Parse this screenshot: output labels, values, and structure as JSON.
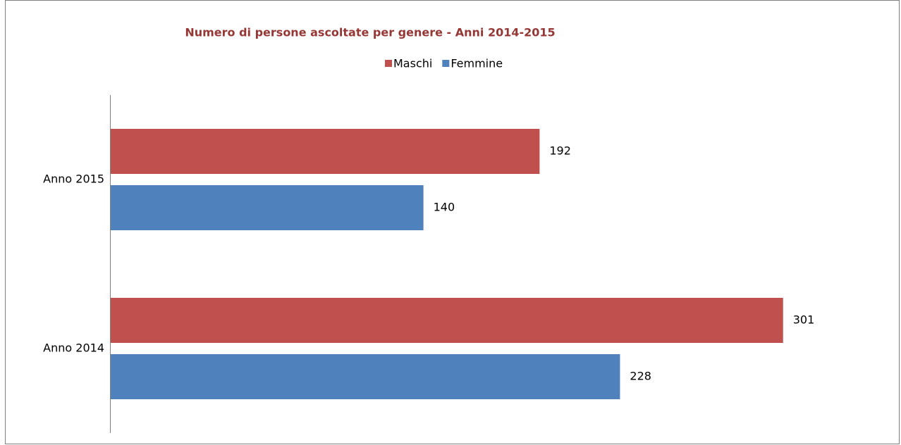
{
  "chart_data": {
    "type": "hbar",
    "title": "Numero di persone ascoltate per genere - Anni 2014-2015",
    "categories": [
      "Anno 2015",
      "Anno 2014"
    ],
    "series": [
      {
        "name": "Maschi",
        "color": "#c0504d",
        "values": [
          192,
          301
        ]
      },
      {
        "name": "Femmine",
        "color": "#4f81bd",
        "values": [
          140,
          228
        ]
      }
    ],
    "xlim": [
      0,
      350
    ]
  }
}
